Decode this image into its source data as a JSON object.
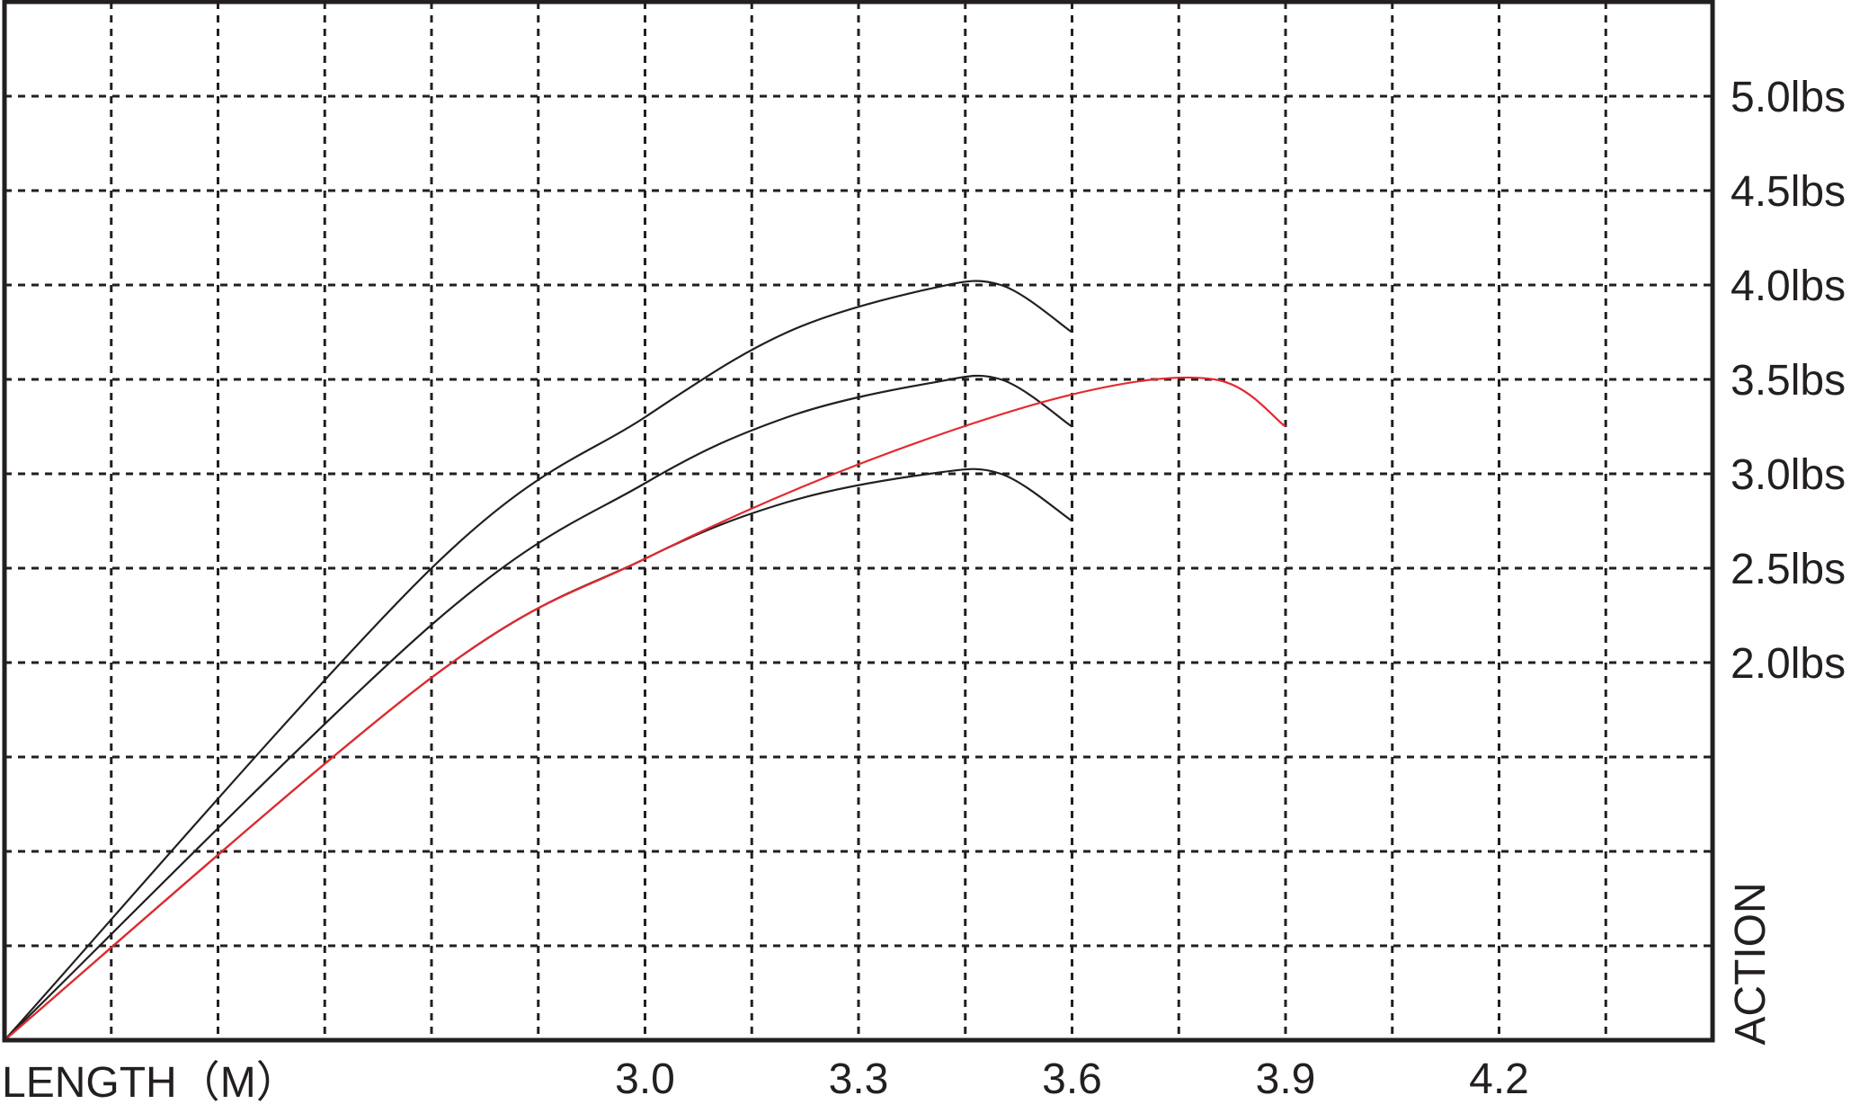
{
  "chart_data": {
    "type": "line",
    "title": "",
    "xlabel": "LENGTH（M）",
    "ylabel": "ACTION",
    "xlim": [
      2.1,
      4.5
    ],
    "ylim": [
      0,
      5.5
    ],
    "y_axis_position": "right",
    "grid": true,
    "grid_style": "dashed",
    "legend": "none",
    "x_ticks": [
      {
        "value": 3.0,
        "label": "3.0"
      },
      {
        "value": 3.3,
        "label": "3.3"
      },
      {
        "value": 3.6,
        "label": "3.6"
      },
      {
        "value": 3.9,
        "label": "3.9"
      },
      {
        "value": 4.2,
        "label": "4.2"
      }
    ],
    "y_ticks": [
      {
        "value": 2.0,
        "label": "2.0lbs"
      },
      {
        "value": 2.5,
        "label": "2.5lbs"
      },
      {
        "value": 3.0,
        "label": "3.0lbs"
      },
      {
        "value": 3.5,
        "label": "3.5lbs"
      },
      {
        "value": 4.0,
        "label": "4.0lbs"
      },
      {
        "value": 4.5,
        "label": "4.5lbs"
      },
      {
        "value": 5.0,
        "label": "5.0lbs"
      }
    ],
    "series": [
      {
        "color": "#231f20",
        "x": [
          2.1,
          2.7,
          3.0,
          3.2,
          3.4,
          3.5,
          3.6
        ],
        "y": [
          0,
          2.5,
          3.3,
          3.75,
          3.98,
          4.0,
          3.75
        ]
      },
      {
        "color": "#231f20",
        "x": [
          2.1,
          2.7,
          3.0,
          3.2,
          3.4,
          3.5,
          3.6
        ],
        "y": [
          0,
          2.2,
          2.95,
          3.3,
          3.48,
          3.5,
          3.25
        ]
      },
      {
        "color": "#231f20",
        "x": [
          2.1,
          2.7,
          3.0,
          3.2,
          3.4,
          3.5,
          3.6
        ],
        "y": [
          0,
          1.92,
          2.55,
          2.85,
          3.0,
          3.0,
          2.75
        ]
      },
      {
        "color": "#e5292e",
        "x": [
          2.1,
          2.7,
          3.0,
          3.3,
          3.6,
          3.8,
          3.9
        ],
        "y": [
          0,
          1.92,
          2.55,
          3.05,
          3.42,
          3.5,
          3.25
        ]
      }
    ]
  }
}
